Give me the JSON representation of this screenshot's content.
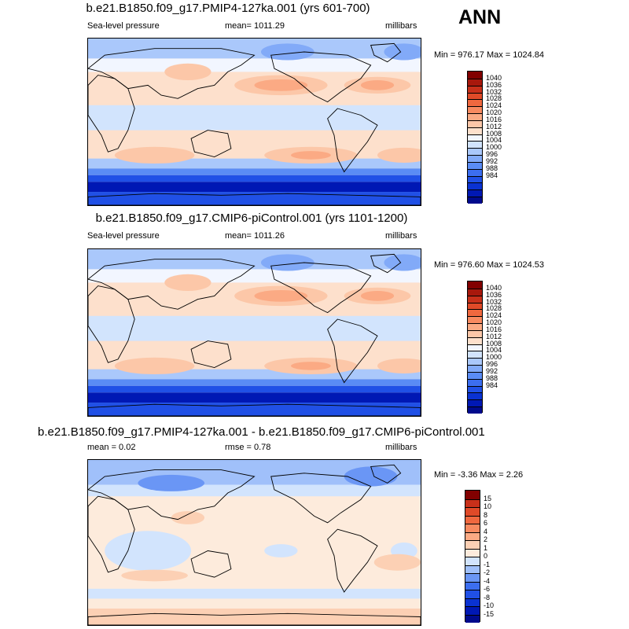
{
  "season": "ANN",
  "palettes": {
    "abs": [
      "#000a8c",
      "#0018b4",
      "#0a32d2",
      "#2050e6",
      "#3c6ef0",
      "#5a8cf5",
      "#82aaf8",
      "#aac8fb",
      "#d2e4fd",
      "#f2f6ff",
      "#fde0cc",
      "#fcc7a8",
      "#fbaa84",
      "#f88a60",
      "#f0683f",
      "#e04a28",
      "#c8301a",
      "#a8180c",
      "#820000"
    ],
    "diff": [
      "#000a8c",
      "#0018b4",
      "#0a32d2",
      "#2050e6",
      "#3c6ef0",
      "#6a96f5",
      "#a0c0fa",
      "#d2e4fd",
      "#fdebdc",
      "#fcd0b4",
      "#fbaa84",
      "#f88a60",
      "#f0683f",
      "#e04a28",
      "#c8301a",
      "#820000"
    ]
  },
  "panels": [
    {
      "title": "b.e21.B1850.f09_g17.PMIP4-127ka.001 (yrs 601-700)",
      "left_label": "Sea-level pressure",
      "center_label": "mean= 1011.29",
      "right_label": "millibars",
      "minmax": "Min = 976.17 Max = 1024.84",
      "colorbar_ticks": [
        "1040",
        "1036",
        "1032",
        "1028",
        "1024",
        "1020",
        "1016",
        "1012",
        "1008",
        "1004",
        "1000",
        "996",
        "992",
        "988",
        "984"
      ]
    },
    {
      "title": "b.e21.B1850.f09_g17.CMIP6-piControl.001 (yrs 1101-1200)",
      "left_label": "Sea-level pressure",
      "center_label": "mean= 1011.26",
      "right_label": "millibars",
      "minmax": "Min = 976.60 Max = 1024.53",
      "colorbar_ticks": [
        "1040",
        "1036",
        "1032",
        "1028",
        "1024",
        "1020",
        "1016",
        "1012",
        "1008",
        "1004",
        "1000",
        "996",
        "992",
        "988",
        "984"
      ]
    },
    {
      "title": "b.e21.B1850.f09_g17.PMIP4-127ka.001 - b.e21.B1850.f09_g17.CMIP6-piControl.001",
      "left_label": "mean =   0.02",
      "center_label": "rmse =   0.78",
      "right_label": "millibars",
      "minmax": "Min =  -3.36 Max =   2.26",
      "colorbar_ticks": [
        "15",
        "10",
        "8",
        "6",
        "4",
        "2",
        "1",
        "0",
        "-1",
        "-2",
        "-4",
        "-6",
        "-8",
        "-10",
        "-15"
      ]
    }
  ],
  "chart_data": [
    {
      "type": "heatmap",
      "title": "b.e21.B1850.f09_g17.PMIP4-127ka.001 (yrs 601-700)",
      "variable": "Sea-level pressure",
      "units": "millibars",
      "mean": 1011.29,
      "min": 976.17,
      "max": 1024.84,
      "levels": [
        984,
        988,
        992,
        996,
        1000,
        1004,
        1008,
        1012,
        1016,
        1020,
        1024,
        1028,
        1032,
        1036,
        1040
      ]
    },
    {
      "type": "heatmap",
      "title": "b.e21.B1850.f09_g17.CMIP6-piControl.001 (yrs 1101-1200)",
      "variable": "Sea-level pressure",
      "units": "millibars",
      "mean": 1011.26,
      "min": 976.6,
      "max": 1024.53,
      "levels": [
        984,
        988,
        992,
        996,
        1000,
        1004,
        1008,
        1012,
        1016,
        1020,
        1024,
        1028,
        1032,
        1036,
        1040
      ]
    },
    {
      "type": "heatmap",
      "title": "b.e21.B1850.f09_g17.PMIP4-127ka.001 - b.e21.B1850.f09_g17.CMIP6-piControl.001",
      "units": "millibars",
      "mean": 0.02,
      "rmse": 0.78,
      "min": -3.36,
      "max": 2.26,
      "levels": [
        -15,
        -10,
        -8,
        -6,
        -4,
        -2,
        -1,
        0,
        1,
        2,
        4,
        6,
        8,
        10,
        15
      ]
    }
  ]
}
